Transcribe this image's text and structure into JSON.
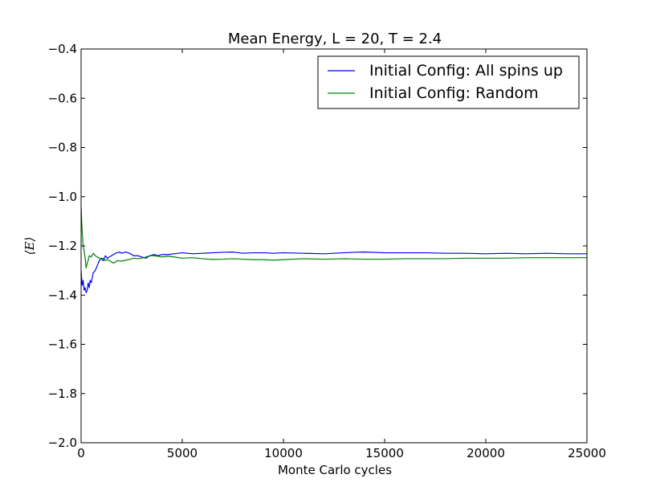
{
  "chart_data": {
    "type": "line",
    "title": "Mean Energy, L = 20, T = 2.4",
    "xlabel": "Monte Carlo cycles",
    "ylabel": "⟨E⟩",
    "xlim": [
      0,
      25000
    ],
    "ylim": [
      -2.0,
      -0.4
    ],
    "xticks": [
      0,
      5000,
      10000,
      15000,
      20000,
      25000
    ],
    "xtick_labels": [
      "0",
      "5000",
      "10000",
      "15000",
      "20000",
      "25000"
    ],
    "yticks": [
      -0.4,
      -0.6,
      -0.8,
      -1.0,
      -1.2,
      -1.4,
      -1.6,
      -1.8,
      -2.0
    ],
    "ytick_labels": [
      "−0.4",
      "−0.6",
      "−0.8",
      "−1.0",
      "−1.2",
      "−1.4",
      "−1.6",
      "−1.8",
      "−2.0"
    ],
    "grid": false,
    "legend_position": "top-right",
    "series": [
      {
        "name": "Initial Config: All spins up",
        "color": "#0000ff",
        "x": [
          0,
          50,
          100,
          150,
          200,
          250,
          300,
          350,
          400,
          450,
          500,
          600,
          700,
          800,
          900,
          1000,
          1100,
          1200,
          1300,
          1400,
          1500,
          1700,
          1900,
          2000,
          2200,
          2400,
          2600,
          2800,
          3000,
          3200,
          3400,
          3600,
          3800,
          4000,
          4300,
          4600,
          5000,
          5500,
          6000,
          6500,
          7000,
          7500,
          8000,
          8500,
          9000,
          9500,
          10000,
          11000,
          12000,
          13000,
          13500,
          14000,
          15000,
          16000,
          17000,
          18000,
          19000,
          20000,
          21000,
          22000,
          23000,
          24000,
          25000
        ],
        "y": [
          -1.3,
          -1.36,
          -1.34,
          -1.38,
          -1.37,
          -1.39,
          -1.38,
          -1.35,
          -1.37,
          -1.34,
          -1.35,
          -1.31,
          -1.3,
          -1.28,
          -1.26,
          -1.25,
          -1.26,
          -1.24,
          -1.25,
          -1.245,
          -1.24,
          -1.23,
          -1.225,
          -1.23,
          -1.225,
          -1.23,
          -1.24,
          -1.24,
          -1.245,
          -1.25,
          -1.24,
          -1.235,
          -1.24,
          -1.235,
          -1.235,
          -1.232,
          -1.228,
          -1.232,
          -1.23,
          -1.228,
          -1.226,
          -1.225,
          -1.23,
          -1.228,
          -1.228,
          -1.23,
          -1.228,
          -1.23,
          -1.232,
          -1.228,
          -1.226,
          -1.225,
          -1.228,
          -1.228,
          -1.228,
          -1.23,
          -1.23,
          -1.232,
          -1.23,
          -1.232,
          -1.23,
          -1.232,
          -1.232
        ]
      },
      {
        "name": "Initial Config: Random",
        "color": "#008000",
        "x": [
          0,
          30,
          60,
          100,
          150,
          200,
          250,
          300,
          350,
          400,
          500,
          600,
          700,
          800,
          900,
          1000,
          1100,
          1200,
          1300,
          1400,
          1500,
          1600,
          1700,
          1800,
          2000,
          2200,
          2400,
          2600,
          2800,
          3000,
          3200,
          3400,
          3600,
          3800,
          4000,
          4300,
          4600,
          5000,
          5500,
          6000,
          6500,
          7000,
          7500,
          8000,
          8500,
          9000,
          9500,
          10000,
          11000,
          12000,
          13000,
          14000,
          15000,
          16000,
          17000,
          18000,
          19000,
          20000,
          21000,
          22000,
          23000,
          24000,
          25000
        ],
        "y": [
          -1.04,
          -1.1,
          -1.15,
          -1.2,
          -1.22,
          -1.25,
          -1.29,
          -1.27,
          -1.26,
          -1.24,
          -1.245,
          -1.23,
          -1.24,
          -1.245,
          -1.25,
          -1.255,
          -1.25,
          -1.26,
          -1.255,
          -1.26,
          -1.265,
          -1.27,
          -1.265,
          -1.26,
          -1.262,
          -1.258,
          -1.255,
          -1.25,
          -1.252,
          -1.25,
          -1.245,
          -1.24,
          -1.24,
          -1.242,
          -1.245,
          -1.242,
          -1.245,
          -1.25,
          -1.248,
          -1.252,
          -1.255,
          -1.254,
          -1.252,
          -1.254,
          -1.256,
          -1.256,
          -1.258,
          -1.256,
          -1.252,
          -1.254,
          -1.252,
          -1.254,
          -1.254,
          -1.252,
          -1.252,
          -1.252,
          -1.25,
          -1.25,
          -1.25,
          -1.248,
          -1.248,
          -1.248,
          -1.248
        ]
      }
    ]
  }
}
